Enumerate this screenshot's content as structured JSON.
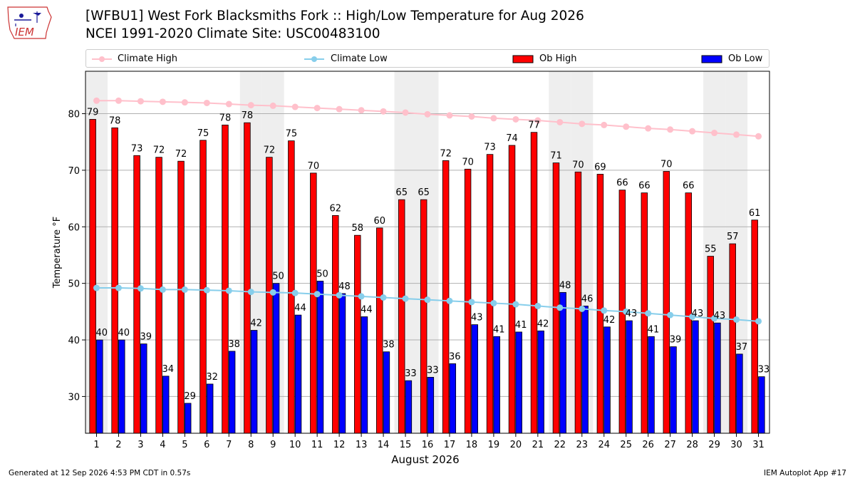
{
  "header": {
    "title": "[WFBU1] West Fork Blacksmiths Fork :: High/Low Temperature for Aug 2026",
    "subtitle": "NCEI 1991-2020 Climate Site: USC00483100"
  },
  "logo": {
    "text": "IEM"
  },
  "footer": {
    "generated": "Generated at 12 Sep 2026 4:53 PM CDT in 0.57s",
    "app": "IEM Autoplot App #17"
  },
  "colors": {
    "ob_high": "#ff0000",
    "ob_low": "#0000ff",
    "climate_high": "#ffc0cb",
    "climate_low": "#87ceeb",
    "weekend_band": "#eeeeee",
    "grid": "#b0b0b0"
  },
  "chart_data": {
    "type": "bar",
    "xlabel": "August 2026",
    "ylabel": "Temperature °F",
    "ylim": [
      23.5,
      87.5
    ],
    "yticks": [
      30,
      40,
      50,
      60,
      70,
      80
    ],
    "grid": "horizontal",
    "legend_position": "top",
    "categories": [
      "1",
      "2",
      "3",
      "4",
      "5",
      "6",
      "7",
      "8",
      "9",
      "10",
      "11",
      "12",
      "13",
      "14",
      "15",
      "16",
      "17",
      "18",
      "19",
      "20",
      "21",
      "22",
      "23",
      "24",
      "25",
      "26",
      "27",
      "28",
      "29",
      "30",
      "31"
    ],
    "shaded_days": [
      1,
      8,
      9,
      15,
      16,
      22,
      23,
      29,
      30
    ],
    "series": [
      {
        "name": "Ob High",
        "kind": "bar",
        "values": [
          79,
          77.5,
          72.6,
          72.3,
          71.6,
          75.3,
          78,
          78.4,
          72.3,
          75.2,
          69.5,
          62,
          58.5,
          59.8,
          64.8,
          64.8,
          71.7,
          70.2,
          72.8,
          74.4,
          76.7,
          71.3,
          69.7,
          69.3,
          66.5,
          66,
          69.8,
          66,
          54.8,
          57,
          61.2
        ],
        "labels": [
          "79",
          "78",
          "73",
          "72",
          "72",
          "75",
          "78",
          "78",
          "72",
          "75",
          "70",
          "62",
          "58",
          "60",
          "65",
          "65",
          "72",
          "70",
          "73",
          "74",
          "77",
          "71",
          "70",
          "69",
          "66",
          "66",
          "70",
          "66",
          "55",
          "57",
          "61"
        ]
      },
      {
        "name": "Ob Low",
        "kind": "bar",
        "values": [
          40,
          40,
          39.3,
          33.6,
          28.8,
          32.2,
          38,
          41.7,
          50,
          44.4,
          50.4,
          48.2,
          44.1,
          37.9,
          32.8,
          33.4,
          35.8,
          42.7,
          40.6,
          41.4,
          41.6,
          48.4,
          46,
          42.3,
          43.4,
          40.6,
          38.8,
          43.4,
          43,
          37.5,
          33.5
        ],
        "labels": [
          "40",
          "40",
          "39",
          "34",
          "29",
          "32",
          "38",
          "42",
          "50",
          "44",
          "50",
          "48",
          "44",
          "38",
          "33",
          "33",
          "36",
          "43",
          "41",
          "41",
          "42",
          "48",
          "46",
          "42",
          "43",
          "41",
          "39",
          "43",
          "43",
          "37",
          "33"
        ]
      },
      {
        "name": "Climate High",
        "kind": "line",
        "values": [
          82.3,
          82.3,
          82.2,
          82.1,
          82.0,
          81.9,
          81.7,
          81.5,
          81.4,
          81.2,
          81.0,
          80.8,
          80.6,
          80.4,
          80.2,
          79.9,
          79.7,
          79.5,
          79.2,
          79.0,
          78.8,
          78.5,
          78.2,
          78.0,
          77.7,
          77.4,
          77.2,
          76.9,
          76.6,
          76.3,
          76.0
        ]
      },
      {
        "name": "Climate Low",
        "kind": "line",
        "values": [
          49.2,
          49.2,
          49.1,
          48.9,
          48.9,
          48.8,
          48.7,
          48.5,
          48.4,
          48.3,
          48.1,
          47.9,
          47.7,
          47.5,
          47.3,
          47.1,
          46.9,
          46.7,
          46.5,
          46.3,
          46.0,
          45.7,
          45.5,
          45.2,
          45.0,
          44.7,
          44.4,
          44.1,
          43.8,
          43.6,
          43.3
        ]
      }
    ]
  }
}
